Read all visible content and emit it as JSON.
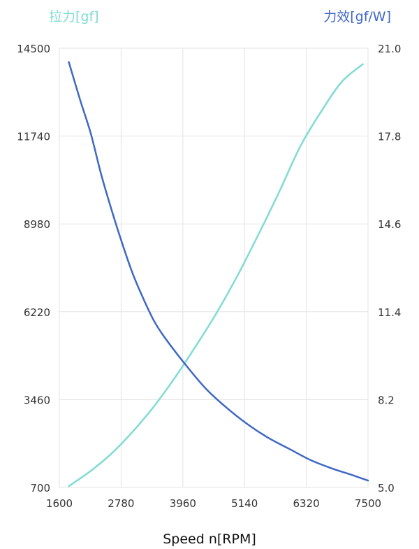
{
  "chart_data": {
    "type": "line",
    "xlabel": "Speed n[RPM]",
    "x_ticks": [
      1600,
      2780,
      3960,
      5140,
      6320,
      7500
    ],
    "xlim": [
      1600,
      7500
    ],
    "y_left": {
      "label": "拉力[gf]",
      "ticks": [
        700,
        3460,
        6220,
        8980,
        11740,
        14500
      ],
      "lim": [
        700,
        14500
      ],
      "color": "#7fdcd4"
    },
    "y_right": {
      "label": "力效[gf/W]",
      "ticks": [
        "5.0",
        "8.2",
        "11.4",
        "14.6",
        "17.8",
        "21.0"
      ],
      "lim": [
        5.0,
        21.0
      ],
      "color": "#3f68c4"
    },
    "grid": true,
    "series": [
      {
        "name": "拉力[gf]",
        "axis": "left",
        "color": "#7fdcd4",
        "x": [
          1780,
          2200,
          2600,
          3000,
          3400,
          3800,
          4200,
          4600,
          5000,
          5400,
          5800,
          6200,
          6600,
          7000,
          7400
        ],
        "y": [
          740,
          1220,
          1770,
          2450,
          3230,
          4130,
          5120,
          6170,
          7340,
          8630,
          9980,
          11400,
          12500,
          13450,
          14000
        ]
      },
      {
        "name": "力效[gf/W]",
        "axis": "right",
        "color": "#3f68c4",
        "x": [
          1780,
          2000,
          2200,
          2400,
          2600,
          2800,
          3000,
          3200,
          3400,
          3600,
          4000,
          4400,
          4800,
          5200,
          5600,
          6000,
          6400,
          6800,
          7200,
          7500
        ],
        "y": [
          20.5,
          19.1,
          17.9,
          16.4,
          15.1,
          13.9,
          12.8,
          11.9,
          11.1,
          10.5,
          9.5,
          8.6,
          7.9,
          7.3,
          6.8,
          6.4,
          6.0,
          5.7,
          5.45,
          5.25
        ]
      }
    ]
  }
}
